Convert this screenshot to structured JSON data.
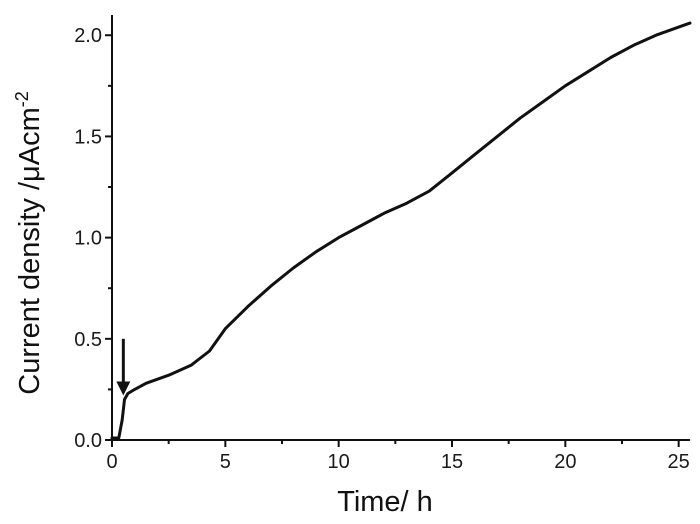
{
  "chart_data": {
    "type": "line",
    "xlabel": "Time/ h",
    "ylabel_main": "Current density /μAcm",
    "ylabel_sup": "-2",
    "xlim": [
      0,
      25.5
    ],
    "ylim": [
      0,
      2.1
    ],
    "x_ticks": [
      0,
      5,
      10,
      15,
      20,
      25
    ],
    "x_tick_labels": [
      "0",
      "5",
      "10",
      "15",
      "20",
      "25"
    ],
    "y_ticks": [
      0.0,
      0.5,
      1.0,
      1.5,
      2.0
    ],
    "y_tick_labels": [
      "0.0",
      "0.5",
      "1.0",
      "1.5",
      "2.0"
    ],
    "grid": false,
    "series": [
      {
        "x": [
          0.0,
          0.3,
          0.45,
          0.55,
          0.7,
          1.0,
          1.5,
          2.5,
          3.5,
          4.3,
          5.0,
          6.0,
          7.0,
          8.0,
          9.0,
          10.0,
          11.0,
          12.0,
          13.0,
          14.0,
          15.0,
          16.0,
          17.0,
          18.0,
          19.0,
          20.0,
          21.0,
          22.0,
          23.0,
          24.0,
          25.0,
          25.5
        ],
        "y": [
          0.01,
          0.01,
          0.1,
          0.2,
          0.23,
          0.25,
          0.28,
          0.32,
          0.37,
          0.44,
          0.55,
          0.66,
          0.76,
          0.85,
          0.93,
          1.0,
          1.06,
          1.12,
          1.17,
          1.23,
          1.32,
          1.41,
          1.5,
          1.59,
          1.67,
          1.75,
          1.82,
          1.89,
          1.95,
          2.0,
          2.04,
          2.06
        ]
      }
    ],
    "annotation": {
      "type": "arrow",
      "x": 0.5,
      "y_from": 0.5,
      "y_to": 0.22
    }
  }
}
